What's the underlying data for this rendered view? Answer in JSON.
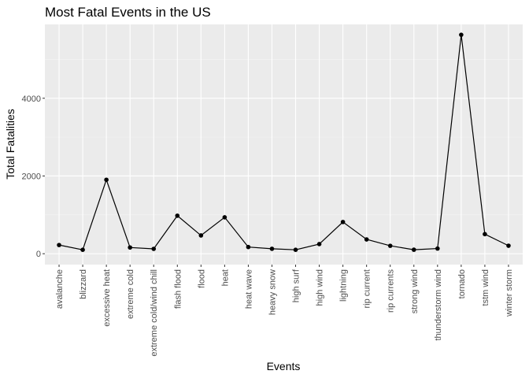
{
  "chart_data": {
    "type": "line",
    "title": "Most Fatal Events in the US",
    "xlabel": "Events",
    "ylabel": "Total Fatalities",
    "categories": [
      "avalanche",
      "blizzard",
      "excessive heat",
      "extreme cold",
      "extreme cold/wind chill",
      "flash flood",
      "flood",
      "heat",
      "heat wave",
      "heavy snow",
      "high surf",
      "high wind",
      "lightning",
      "rip current",
      "rip currents",
      "strong wind",
      "thunderstorm wind",
      "tornado",
      "tstm wind",
      "winter storm"
    ],
    "values": [
      224,
      101,
      1903,
      160,
      125,
      978,
      470,
      937,
      172,
      127,
      101,
      248,
      816,
      368,
      204,
      103,
      133,
      5633,
      504,
      206
    ],
    "ylim": [
      -280,
      5900
    ],
    "yticks": [
      0,
      2000,
      4000
    ],
    "grid": true,
    "markers": true,
    "colors": {
      "line": "#000000",
      "panel_bg": "#ebebeb",
      "grid_major": "#ffffff",
      "tick_mark": "#333333",
      "tick_text": "#4d4d4d"
    }
  }
}
